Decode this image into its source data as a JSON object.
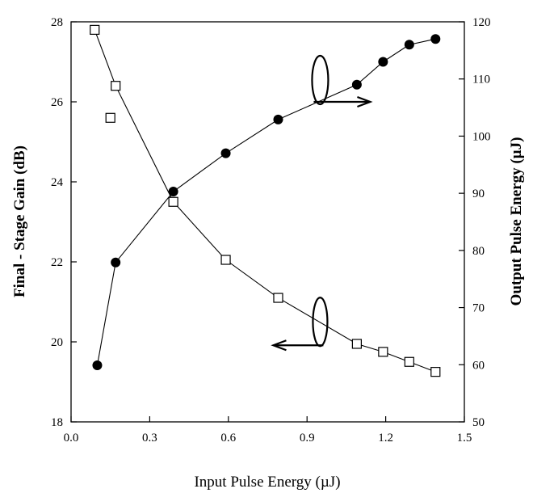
{
  "chart_data": {
    "type": "scatter",
    "title": "",
    "xlabel": "Input Pulse Energy (µJ)",
    "ylabel_left": "Final - Stage Gain (dB)",
    "ylabel_right": "Output Pulse Energy (µJ)",
    "xlim": [
      0.0,
      1.5
    ],
    "ylim_left": [
      18,
      28
    ],
    "ylim_right": [
      50,
      120
    ],
    "x_ticks": [
      "0.0",
      "0.3",
      "0.6",
      "0.9",
      "1.2",
      "1.5"
    ],
    "y_left_ticks": [
      "18",
      "20",
      "22",
      "24",
      "26",
      "28"
    ],
    "y_right_ticks": [
      "50",
      "60",
      "70",
      "80",
      "90",
      "100",
      "110",
      "120"
    ],
    "grid": false,
    "series": [
      {
        "axis": "left",
        "marker": "open-square",
        "connected": true,
        "points": [
          {
            "x": 0.09,
            "y": 27.8
          },
          {
            "x": 0.17,
            "y": 26.4
          },
          {
            "x": 0.39,
            "y": 23.5
          },
          {
            "x": 0.59,
            "y": 22.05
          },
          {
            "x": 0.79,
            "y": 21.1
          },
          {
            "x": 1.09,
            "y": 19.95
          },
          {
            "x": 1.19,
            "y": 19.75
          },
          {
            "x": 1.29,
            "y": 19.5
          },
          {
            "x": 1.39,
            "y": 19.25
          }
        ],
        "unconnected_points": [
          {
            "x": 0.15,
            "y": 25.6
          }
        ]
      },
      {
        "axis": "right",
        "marker": "filled-circle",
        "connected": true,
        "points": [
          {
            "x": 0.1,
            "y": 59.9
          },
          {
            "x": 0.17,
            "y": 77.9
          },
          {
            "x": 0.39,
            "y": 90.3
          },
          {
            "x": 0.59,
            "y": 97.0
          },
          {
            "x": 0.79,
            "y": 102.9
          },
          {
            "x": 1.09,
            "y": 109.0
          },
          {
            "x": 1.19,
            "y": 113.0
          },
          {
            "x": 1.29,
            "y": 116.0
          },
          {
            "x": 1.39,
            "y": 117.0
          }
        ]
      }
    ],
    "annotations": [
      {
        "name": "right-axis-indicator",
        "ellipse": {
          "x": 0.95,
          "y_right": 106
        },
        "arrow_to": "right"
      },
      {
        "name": "left-axis-indicator",
        "ellipse": {
          "x": 0.95,
          "y_left": 20.5
        },
        "arrow_to": "left"
      }
    ]
  }
}
